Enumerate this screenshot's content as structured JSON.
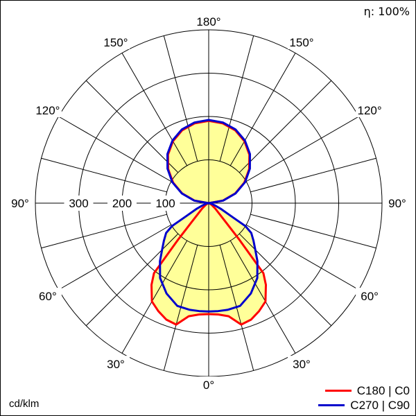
{
  "chart_data": {
    "type": "polar",
    "efficiency_label": "η: 100%",
    "unit_label": "cd/klm",
    "radial_ticks": [
      100,
      200,
      300
    ],
    "radial_max": 400,
    "radial_tick_labels": [
      "100",
      "200",
      "300"
    ],
    "angle_labels": [
      {
        "angle": 180,
        "label": "180°"
      },
      {
        "angle": 150,
        "label": "150°"
      },
      {
        "angle": 120,
        "label": "120°"
      },
      {
        "angle": 90,
        "label": "90°"
      },
      {
        "angle": 60,
        "label": "60°"
      },
      {
        "angle": 30,
        "label": "30°"
      },
      {
        "angle": 0,
        "label": "0°"
      }
    ],
    "spoke_step_deg": 15,
    "fill_color": "#ffff99",
    "series": [
      {
        "name": "C180 | C0",
        "color": "#ff0000",
        "gamma": [
          0,
          5,
          10,
          15,
          20,
          25,
          30,
          35,
          38,
          40,
          42,
          50,
          60,
          70,
          80,
          90,
          100,
          110,
          120,
          130,
          140,
          150,
          160,
          170,
          180
        ],
        "values": [
          256,
          258,
          265,
          290,
          286,
          275,
          262,
          230,
          205,
          110,
          60,
          20,
          8,
          3,
          1,
          0,
          33,
          65,
          95,
          122,
          146,
          165,
          179,
          187,
          190
        ]
      },
      {
        "name": "C270 | C90",
        "color": "#0000cc",
        "gamma": [
          0,
          5,
          10,
          17,
          25,
          33,
          40,
          45,
          50,
          55,
          58,
          60,
          65,
          70,
          80,
          90,
          100,
          110,
          120,
          130,
          140,
          150,
          160,
          170,
          180
        ],
        "values": [
          250,
          250,
          250,
          248,
          230,
          206,
          175,
          152,
          135,
          120,
          100,
          60,
          30,
          15,
          5,
          0,
          34,
          66,
          97,
          124,
          148,
          167,
          181,
          189,
          192
        ]
      }
    ]
  }
}
